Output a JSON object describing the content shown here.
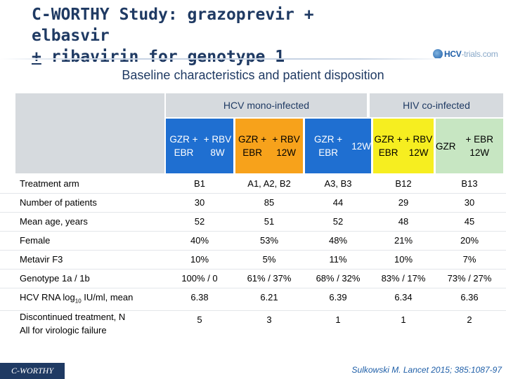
{
  "title": {
    "line1": "C-WORTHY Study: grazoprevir + elbasvir",
    "pm": "+",
    "line2": " ribavirin for genotype 1"
  },
  "logo": {
    "brand": "HCV",
    "suffix": "-trials.com"
  },
  "subtitle": "Baseline characteristics and patient disposition",
  "groups": {
    "mono": "HCV mono-infected",
    "hiv": "HIV co-infected"
  },
  "arms": [
    {
      "line1": "GZR + EBR",
      "line2": "+ RBV 8W",
      "bg": "#1f6fd1",
      "color": "#ffffff"
    },
    {
      "line1": "GZR + EBR",
      "line2": "+ RBV 12W",
      "bg": "#f7a21b",
      "color": "#000000"
    },
    {
      "line1": "GZR + EBR",
      "line2": "12W",
      "bg": "#1f6fd1",
      "color": "#ffffff"
    },
    {
      "line1": "GZR + EBR",
      "line2": "+ RBV 12W",
      "bg": "#f6ee20",
      "color": "#000000"
    },
    {
      "line1": "GZR",
      "line2": "+ EBR 12W",
      "bg": "#c7e6c2",
      "color": "#000000"
    }
  ],
  "rows": [
    {
      "label": "Treatment arm",
      "values": [
        "B1",
        "A1, A2,  B2",
        "A3, B3",
        "B12",
        "B13"
      ]
    },
    {
      "label": "Number of patients",
      "values": [
        "30",
        "85",
        "44",
        "29",
        "30"
      ]
    },
    {
      "label": "Mean age, years",
      "values": [
        "52",
        "51",
        "52",
        "48",
        "45"
      ]
    },
    {
      "label": "Female",
      "values": [
        "40%",
        "53%",
        "48%",
        "21%",
        "20%"
      ]
    },
    {
      "label": "Metavir F3",
      "values": [
        "10%",
        "5%",
        "11%",
        "10%",
        "7%"
      ]
    },
    {
      "label": "Genotype 1a / 1b",
      "values": [
        "100%  / 0",
        "61%  / 37%",
        "68%  / 32%",
        "83%  / 17%",
        "73%  / 27%"
      ]
    },
    {
      "label_pre": "HCV RNA log",
      "label_sub": "10",
      "label_post": " IU/ml, mean",
      "values": [
        "6.38",
        "6.21",
        "6.39",
        "6.34",
        "6.36"
      ]
    },
    {
      "label": "Discontinued treatment, N",
      "label2": "All for virologic failure",
      "values": [
        "5",
        "3",
        "1",
        "1",
        "2"
      ]
    }
  ],
  "footer": {
    "study": "C-WORTHY",
    "citation": "Sulkowski M. Lancet 2015; 385:1087-97"
  }
}
